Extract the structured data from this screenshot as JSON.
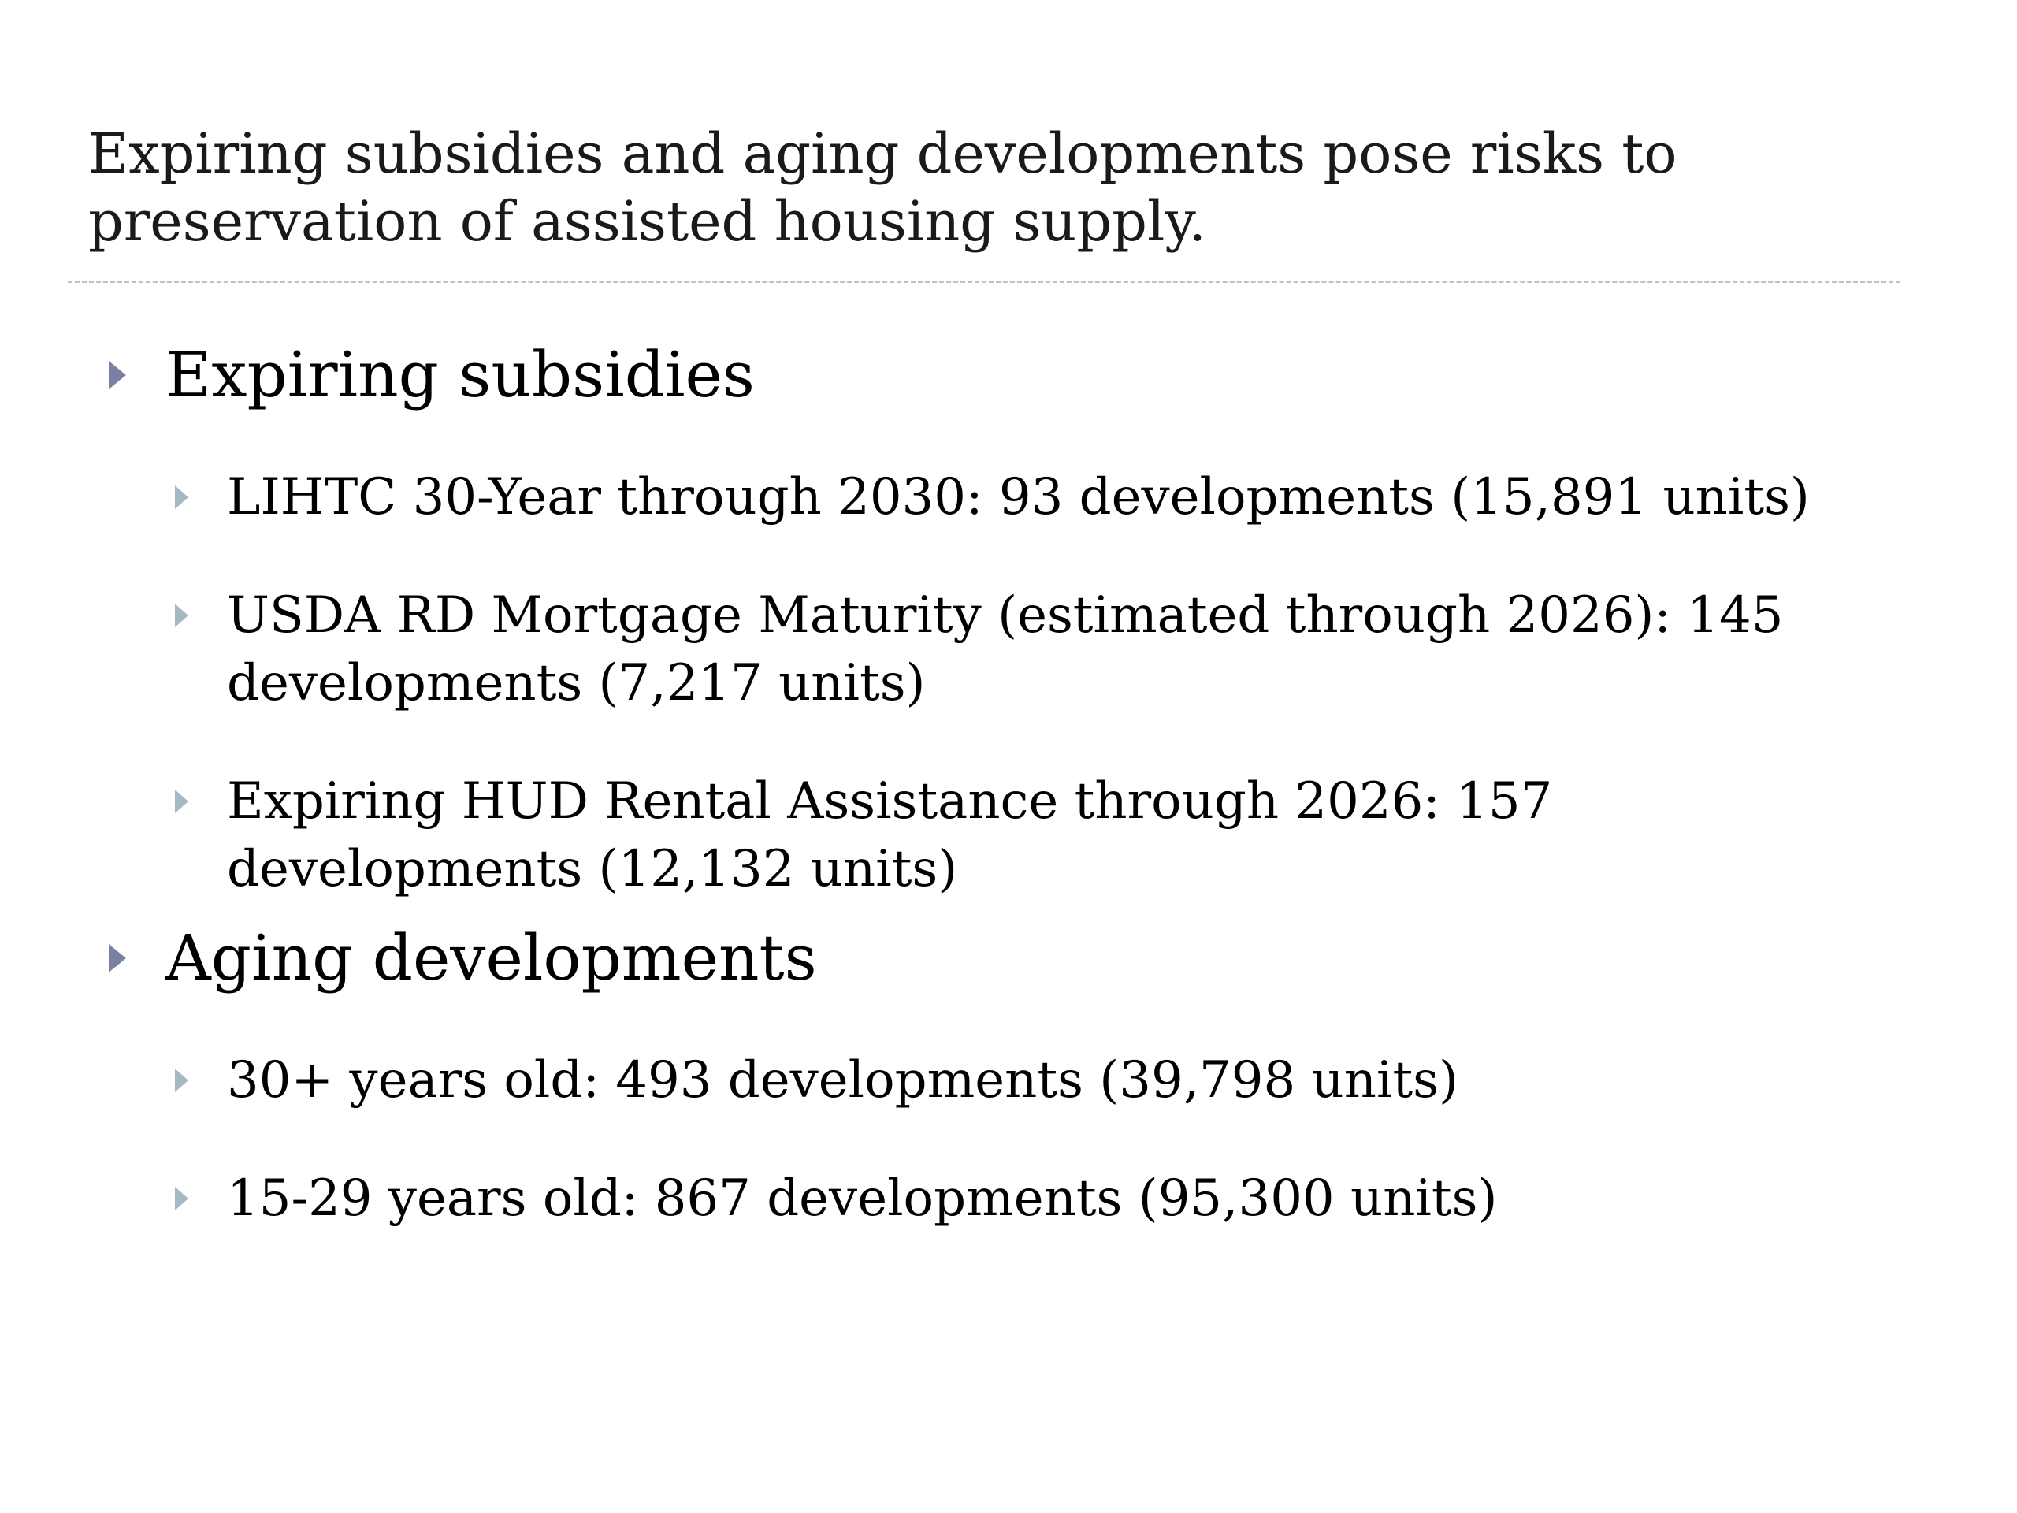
{
  "slide": {
    "title_line1": "Expiring subsidies and aging developments pose risks to",
    "title_line2": "preservation of assisted housing supply.",
    "colors": {
      "divider": "#b7c4cc",
      "level1_arrow": "#7b7fa1",
      "level2_arrow": "#a5b9c4"
    },
    "sections": [
      {
        "heading": "Expiring subsidies",
        "items": [
          {
            "line1": "LIHTC 30-Year through 2030: 93 developments (15,891 units)",
            "line2": ""
          },
          {
            "line1": "USDA RD Mortgage Maturity (estimated through 2026): 145",
            "line2": "developments (7,217 units)"
          },
          {
            "line1": "Expiring HUD Rental Assistance through 2026: 157",
            "line2": "developments (12,132 units)"
          }
        ]
      },
      {
        "heading": "Aging developments",
        "items": [
          {
            "line1": "30+ years old: 493 developments (39,798 units)",
            "line2": ""
          },
          {
            "line1": "15-29 years old: 867 developments (95,300 units)",
            "line2": ""
          }
        ]
      }
    ]
  }
}
